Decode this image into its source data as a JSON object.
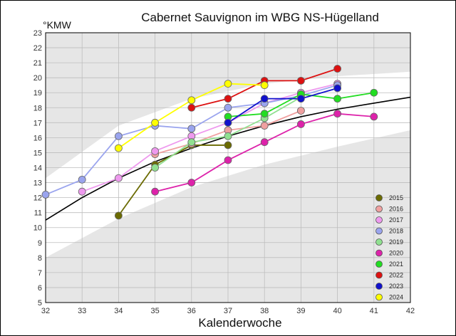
{
  "chart_data": {
    "type": "line",
    "title": "Cabernet Sauvignon im WBG NS-Hügelland",
    "xlabel": "Kalenderwoche",
    "ylabel": "°KMW",
    "xlim": [
      32,
      42
    ],
    "ylim": [
      5,
      23
    ],
    "x_ticks": [
      "32",
      "33",
      "34",
      "35",
      "36",
      "37",
      "38",
      "39",
      "40",
      "41",
      "42"
    ],
    "y_ticks": [
      "5",
      "6",
      "7",
      "8",
      "9",
      "10",
      "11",
      "12",
      "13",
      "14",
      "15",
      "16",
      "17",
      "18",
      "19",
      "20",
      "21",
      "22",
      "23"
    ],
    "grid": true,
    "legend_position": "bottom-right",
    "reference_curve": {
      "color": "#000000",
      "x": [
        32,
        33,
        34,
        35,
        36,
        37,
        38,
        39,
        40,
        41,
        42
      ],
      "y": [
        10.5,
        12.0,
        13.3,
        14.4,
        15.3,
        16.1,
        16.8,
        17.4,
        17.9,
        18.3,
        18.7
      ]
    },
    "band_outer": {
      "x": [
        32,
        34,
        36,
        38,
        40,
        42
      ],
      "upper": [
        13.3,
        16.8,
        18.6,
        19.6,
        20.1,
        20.4
      ],
      "lower": [
        8.0,
        10.6,
        12.7,
        14.2,
        15.4,
        16.5
      ]
    },
    "series": [
      {
        "name": "2015",
        "color": "#6b6b00",
        "x": [
          34,
          35,
          36,
          37
        ],
        "y": [
          10.8,
          14.2,
          15.5,
          15.5
        ]
      },
      {
        "name": "2016",
        "color": "#f0a0a0",
        "x": [
          35,
          36,
          37,
          38,
          39
        ],
        "y": [
          14.9,
          15.6,
          16.5,
          16.8,
          17.8
        ]
      },
      {
        "name": "2017",
        "color": "#ee99ee",
        "x": [
          33,
          34,
          35,
          36,
          37,
          38,
          39,
          40
        ],
        "y": [
          12.4,
          13.3,
          15.1,
          16.1,
          17.0,
          18.3,
          19.0,
          19.6
        ]
      },
      {
        "name": "2018",
        "color": "#9aa4ee",
        "x": [
          32,
          33,
          34,
          35,
          36,
          37,
          38,
          39,
          40
        ],
        "y": [
          12.2,
          13.2,
          16.1,
          16.8,
          16.6,
          18.0,
          18.3,
          18.8,
          19.5
        ]
      },
      {
        "name": "2019",
        "color": "#90e090",
        "x": [
          35,
          36,
          37,
          38,
          39
        ],
        "y": [
          14.0,
          15.7,
          16.1,
          17.3,
          18.7
        ]
      },
      {
        "name": "2020",
        "color": "#dd22aa",
        "x": [
          35,
          36,
          37,
          38,
          39,
          40,
          41
        ],
        "y": [
          12.4,
          13.0,
          14.5,
          15.7,
          16.9,
          17.6,
          17.4
        ]
      },
      {
        "name": "2021",
        "color": "#22dd22",
        "x": [
          37,
          38,
          39,
          40,
          41
        ],
        "y": [
          17.4,
          17.6,
          18.9,
          18.6,
          19.0
        ]
      },
      {
        "name": "2022",
        "color": "#dd1111",
        "x": [
          36,
          37,
          38,
          39,
          40
        ],
        "y": [
          18.0,
          18.6,
          19.8,
          19.8,
          20.6
        ]
      },
      {
        "name": "2023",
        "color": "#1111cc",
        "x": [
          37,
          38,
          39,
          40
        ],
        "y": [
          17.0,
          18.6,
          18.6,
          19.3
        ]
      },
      {
        "name": "2024",
        "color": "#ffff00",
        "x": [
          34,
          35,
          36,
          37,
          38
        ],
        "y": [
          15.3,
          17.0,
          18.5,
          19.6,
          19.5
        ]
      }
    ]
  }
}
